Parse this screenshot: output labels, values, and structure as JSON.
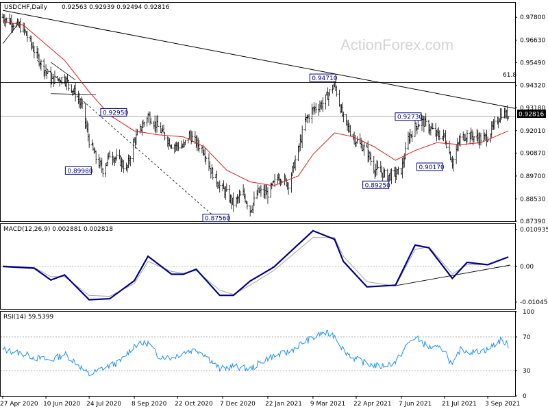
{
  "chart_data": [
    {
      "type": "candlestick",
      "symbol_label": "USDCHF,Daily",
      "ohlc_text": "0.92563 0.92939 0.92494 0.92816",
      "watermark": "ActionForex.com",
      "last_price": "0.92816",
      "y_ticks": [
        "0.97800",
        "0.96630",
        "0.95490",
        "0.94320",
        "0.93180",
        "0.92010",
        "0.90870",
        "0.89700",
        "0.88530",
        "0.87390"
      ],
      "ylim": [
        0.8739,
        0.9854
      ],
      "x_ticks": [
        "27 Apr 2020",
        "10 Jun 2020",
        "24 Jul 2020",
        "8 Sep 2020",
        "22 Oct 2020",
        "7 Dec 2020",
        "22 Jan 2021",
        "9 Mar 2021",
        "22 Apr 2021",
        "7 Jun 2021",
        "21 Jul 2021",
        "3 Sep 2021"
      ],
      "fib_label": "61.8",
      "fib_level": 0.9447,
      "price_path": [
        [
          "27 Apr 2020",
          0.978
        ],
        [
          "18 May 2020",
          0.972
        ],
        [
          "1 Jun 2020",
          0.958
        ],
        [
          "15 Jun 2020",
          0.946
        ],
        [
          "29 Jun 2020",
          0.947
        ],
        [
          "10 Jul 2020",
          0.939
        ],
        [
          "17 Jul 2020",
          0.932
        ],
        [
          "24 Jul 2020",
          0.915
        ],
        [
          "31 Jul 2020",
          0.906
        ],
        [
          "7 Aug 2020",
          0.9
        ],
        [
          "14 Aug 2020",
          0.908
        ],
        [
          "24 Aug 2020",
          0.905
        ],
        [
          "31 Aug 2020",
          0.9
        ],
        [
          "8 Sep 2020",
          0.915
        ],
        [
          "22 Sep 2020",
          0.928
        ],
        [
          "2 Oct 2020",
          0.922
        ],
        [
          "16 Oct 2020",
          0.913
        ],
        [
          "28 Oct 2020",
          0.912
        ],
        [
          "3 Nov 2020",
          0.918
        ],
        [
          "10 Nov 2020",
          0.914
        ],
        [
          "18 Nov 2020",
          0.91
        ],
        [
          "25 Nov 2020",
          0.9
        ],
        [
          "4 Dec 2020",
          0.892
        ],
        [
          "11 Dec 2020",
          0.888
        ],
        [
          "18 Dec 2020",
          0.883
        ],
        [
          "28 Dec 2020",
          0.888
        ],
        [
          "4 Jan 2021",
          0.8795
        ],
        [
          "12 Jan 2021",
          0.889
        ],
        [
          "22 Jan 2021",
          0.888
        ],
        [
          "2 Feb 2021",
          0.897
        ],
        [
          "12 Feb 2021",
          0.893
        ],
        [
          "22 Feb 2021",
          0.91
        ],
        [
          "1 Mar 2021",
          0.925
        ],
        [
          "9 Mar 2021",
          0.931
        ],
        [
          "19 Mar 2021",
          0.934
        ],
        [
          "31 Mar 2021",
          0.944
        ],
        [
          "9 Apr 2021",
          0.926
        ],
        [
          "19 Apr 2021",
          0.917
        ],
        [
          "26 Apr 2021",
          0.913
        ],
        [
          "3 May 2021",
          0.91
        ],
        [
          "10 May 2021",
          0.901
        ],
        [
          "17 May 2021",
          0.899
        ],
        [
          "24 May 2021",
          0.897
        ],
        [
          "1 Jun 2021",
          0.898
        ],
        [
          "7 Jun 2021",
          0.9
        ],
        [
          "14 Jun 2021",
          0.916
        ],
        [
          "21 Jun 2021",
          0.922
        ],
        [
          "28 Jun 2021",
          0.925
        ],
        [
          "5 Jul 2021",
          0.922
        ],
        [
          "13 Jul 2021",
          0.918
        ],
        [
          "21 Jul 2021",
          0.917
        ],
        [
          "29 Jul 2021",
          0.904
        ],
        [
          "6 Aug 2021",
          0.916
        ],
        [
          "13 Aug 2021",
          0.918
        ],
        [
          "20 Aug 2021",
          0.917
        ],
        [
          "27 Aug 2021",
          0.916
        ],
        [
          "3 Sep 2021",
          0.917
        ],
        [
          "10 Sep 2021",
          0.923
        ],
        [
          "17 Sep 2021",
          0.929
        ],
        [
          "24 Sep 2021",
          0.928
        ]
      ],
      "moving_average": [
        [
          "27 Apr 2020",
          0.976
        ],
        [
          "18 May 2020",
          0.974
        ],
        [
          "8 Jun 2020",
          0.965
        ],
        [
          "29 Jun 2020",
          0.956
        ],
        [
          "24 Jul 2020",
          0.94
        ],
        [
          "14 Aug 2020",
          0.928
        ],
        [
          "8 Sep 2020",
          0.92
        ],
        [
          "2 Oct 2020",
          0.918
        ],
        [
          "28 Oct 2020",
          0.917
        ],
        [
          "18 Nov 2020",
          0.912
        ],
        [
          "11 Dec 2020",
          0.9
        ],
        [
          "4 Jan 2021",
          0.894
        ],
        [
          "28 Jan 2021",
          0.892
        ],
        [
          "22 Feb 2021",
          0.897
        ],
        [
          "9 Mar 2021",
          0.908
        ],
        [
          "31 Mar 2021",
          0.919
        ],
        [
          "19 Apr 2021",
          0.917
        ],
        [
          "10 May 2021",
          0.912
        ],
        [
          "1 Jun 2021",
          0.905
        ],
        [
          "21 Jun 2021",
          0.91
        ],
        [
          "13 Jul 2021",
          0.914
        ],
        [
          "6 Aug 2021",
          0.913
        ],
        [
          "27 Aug 2021",
          0.914
        ],
        [
          "24 Sep 2021",
          0.92
        ]
      ],
      "level_labels": [
        {
          "text": "0.94710",
          "date": "19 Mar 2021",
          "value": 0.9471
        },
        {
          "text": "0.92950",
          "date": "18 Aug 2020",
          "value": 0.9295
        },
        {
          "text": "0.92730",
          "date": "14 Jun 2021",
          "value": 0.9273
        },
        {
          "text": "0.89980",
          "date": "13 Jul 2020",
          "value": 0.8998
        },
        {
          "text": "0.90170",
          "date": "6 Jul 2021",
          "value": 0.9017
        },
        {
          "text": "0.89250",
          "date": "12 May 2021",
          "value": 0.8925
        },
        {
          "text": "0.87560",
          "date": "30 Nov 2020",
          "value": 0.8756
        }
      ]
    },
    {
      "type": "line",
      "title": "MACD(12,26,9) 0.002881 0.002818",
      "y_ticks": [
        "0.010935",
        "0.00",
        "-0.010459"
      ],
      "ylim": [
        -0.0125,
        0.0125
      ],
      "series": [
        {
          "name": "MACD",
          "values": [
            [
              "27 Apr 2020",
              0.0
            ],
            [
              "29 May 2020",
              -0.0005
            ],
            [
              "15 Jun 2020",
              -0.004
            ],
            [
              "29 Jun 2020",
              -0.0025
            ],
            [
              "24 Jul 2020",
              -0.0098
            ],
            [
              "14 Aug 2020",
              -0.0095
            ],
            [
              "8 Sep 2020",
              -0.0042
            ],
            [
              "22 Sep 2020",
              0.003
            ],
            [
              "16 Oct 2020",
              -0.0023
            ],
            [
              "28 Oct 2020",
              -0.0023
            ],
            [
              "10 Nov 2020",
              -0.0008
            ],
            [
              "4 Dec 2020",
              -0.0085
            ],
            [
              "18 Dec 2020",
              -0.0085
            ],
            [
              "4 Jan 2021",
              -0.0043
            ],
            [
              "28 Jan 2021",
              -0.0002
            ],
            [
              "9 Mar 2021",
              0.0105
            ],
            [
              "31 Mar 2021",
              0.008
            ],
            [
              "9 Apr 2021",
              0.0015
            ],
            [
              "3 May 2021",
              -0.006
            ],
            [
              "1 Jun 2021",
              -0.0055
            ],
            [
              "21 Jun 2021",
              0.0063
            ],
            [
              "5 Jul 2021",
              0.0055
            ],
            [
              "29 Jul 2021",
              -0.0035
            ],
            [
              "13 Aug 2021",
              0.0012
            ],
            [
              "3 Sep 2021",
              0.0005
            ],
            [
              "24 Sep 2021",
              0.0028
            ]
          ]
        },
        {
          "name": "Signal",
          "values": [
            [
              "27 Apr 2020",
              0.0002
            ],
            [
              "29 May 2020",
              -0.0003
            ],
            [
              "15 Jun 2020",
              -0.003
            ],
            [
              "29 Jun 2020",
              -0.003
            ],
            [
              "24 Jul 2020",
              -0.0085
            ],
            [
              "14 Aug 2020",
              -0.0088
            ],
            [
              "8 Sep 2020",
              -0.005
            ],
            [
              "22 Sep 2020",
              0.0015
            ],
            [
              "16 Oct 2020",
              -0.0015
            ],
            [
              "28 Oct 2020",
              -0.002
            ],
            [
              "10 Nov 2020",
              -0.0012
            ],
            [
              "4 Dec 2020",
              -0.007
            ],
            [
              "18 Dec 2020",
              -0.0082
            ],
            [
              "4 Jan 2021",
              -0.0055
            ],
            [
              "28 Jan 2021",
              -0.0012
            ],
            [
              "9 Mar 2021",
              0.0085
            ],
            [
              "31 Mar 2021",
              0.0085
            ],
            [
              "9 Apr 2021",
              0.003
            ],
            [
              "3 May 2021",
              -0.0045
            ],
            [
              "1 Jun 2021",
              -0.0058
            ],
            [
              "21 Jun 2021",
              0.005
            ],
            [
              "5 Jul 2021",
              0.0058
            ],
            [
              "29 Jul 2021",
              -0.0022
            ],
            [
              "13 Aug 2021",
              0.0005
            ],
            [
              "3 Sep 2021",
              0.0006
            ],
            [
              "24 Sep 2021",
              0.0028
            ]
          ]
        }
      ],
      "trendline": [
        [
          "2 Jun 2021",
          -0.0056
        ],
        [
          "26 Sep 2021",
          0.0004
        ]
      ]
    },
    {
      "type": "line",
      "title": "RSI(14) 59.5399",
      "y_ticks": [
        "100",
        "70",
        "30",
        "0"
      ],
      "ylim": [
        0,
        100
      ],
      "series": [
        {
          "name": "RSI",
          "values": [
            [
              "27 Apr 2020",
              55
            ],
            [
              "18 May 2020",
              50
            ],
            [
              "1 Jun 2020",
              45
            ],
            [
              "15 Jun 2020",
              42
            ],
            [
              "29 Jun 2020",
              50
            ],
            [
              "10 Jul 2020",
              40
            ],
            [
              "24 Jul 2020",
              25
            ],
            [
              "7 Aug 2020",
              33
            ],
            [
              "24 Aug 2020",
              40
            ],
            [
              "8 Sep 2020",
              60
            ],
            [
              "22 Sep 2020",
              63
            ],
            [
              "2 Oct 2020",
              48
            ],
            [
              "16 Oct 2020",
              45
            ],
            [
              "28 Oct 2020",
              52
            ],
            [
              "10 Nov 2020",
              55
            ],
            [
              "18 Nov 2020",
              50
            ],
            [
              "4 Dec 2020",
              32
            ],
            [
              "18 Dec 2020",
              35
            ],
            [
              "4 Jan 2021",
              32
            ],
            [
              "22 Jan 2021",
              45
            ],
            [
              "12 Feb 2021",
              52
            ],
            [
              "1 Mar 2021",
              65
            ],
            [
              "9 Mar 2021",
              68
            ],
            [
              "19 Mar 2021",
              75
            ],
            [
              "31 Mar 2021",
              72
            ],
            [
              "9 Apr 2021",
              55
            ],
            [
              "19 Apr 2021",
              45
            ],
            [
              "3 May 2021",
              38
            ],
            [
              "17 May 2021",
              35
            ],
            [
              "1 Jun 2021",
              40
            ],
            [
              "14 Jun 2021",
              62
            ],
            [
              "21 Jun 2021",
              70
            ],
            [
              "5 Jul 2021",
              58
            ],
            [
              "21 Jul 2021",
              55
            ],
            [
              "29 Jul 2021",
              35
            ],
            [
              "6 Aug 2021",
              55
            ],
            [
              "20 Aug 2021",
              52
            ],
            [
              "3 Sep 2021",
              55
            ],
            [
              "17 Sep 2021",
              67
            ],
            [
              "24 Sep 2021",
              59.5
            ]
          ]
        }
      ]
    }
  ],
  "colors": {
    "macd": "#000080",
    "signal": "#a0a0a0",
    "rsi": "#1e90ff",
    "moving_average": "#dc1e1e",
    "label_box_text": "#000080",
    "price_tag_bg": "#000000",
    "price_tag_text": "#ffffff"
  }
}
